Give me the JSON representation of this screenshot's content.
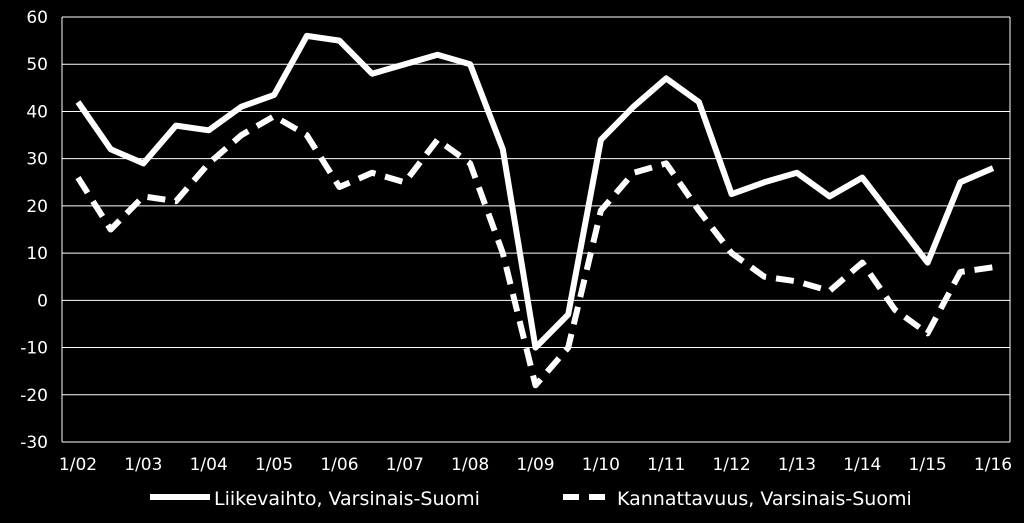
{
  "chart_data": {
    "type": "line",
    "ylim": [
      -30,
      60
    ],
    "yticks": [
      -30,
      -20,
      -10,
      0,
      10,
      20,
      30,
      40,
      50,
      60
    ],
    "xticks": [
      "1/02",
      "1/03",
      "1/04",
      "1/05",
      "1/06",
      "1/07",
      "1/08",
      "1/09",
      "1/10",
      "1/11",
      "1/12",
      "1/13",
      "1/14",
      "1/15",
      "1/16"
    ],
    "xlim": [
      0,
      14
    ],
    "grid": "horizontal",
    "legend": "bottom",
    "background": "#000000",
    "series": [
      {
        "name": "Liikevaihto, Varsinais-Suomi",
        "style": "solid",
        "color": "#ffffff",
        "x": [
          0,
          0.5,
          1,
          1.5,
          2,
          2.5,
          3,
          3.5,
          4,
          4.5,
          5,
          5.5,
          6,
          6.5,
          7,
          7.5,
          8,
          8.5,
          9,
          9.5,
          10,
          10.5,
          11,
          11.5,
          12,
          12.5,
          13,
          13.5,
          14
        ],
        "values": [
          42,
          32,
          29,
          37,
          36,
          41,
          43.5,
          56,
          55,
          48,
          50,
          52,
          50,
          32,
          -10,
          -3,
          34,
          41,
          47,
          42,
          22.5,
          25,
          27,
          22,
          26,
          17,
          8,
          25,
          28
        ]
      },
      {
        "name": "Kannattavuus, Varsinais-Suomi",
        "style": "dashed",
        "color": "#ffffff",
        "x": [
          0,
          0.5,
          1,
          1.5,
          2,
          2.5,
          3,
          3.5,
          4,
          4.5,
          5,
          5.5,
          6,
          6.5,
          7,
          7.5,
          8,
          8.5,
          9,
          9.5,
          10,
          10.5,
          11,
          11.5,
          12,
          12.5,
          13,
          13.5,
          14
        ],
        "values": [
          26,
          15,
          22,
          21,
          29,
          35,
          39,
          35,
          24,
          27,
          25,
          34,
          29,
          10,
          -18,
          -10,
          19,
          27,
          29,
          19,
          10,
          5,
          4,
          2,
          8,
          -2,
          -7,
          6,
          7
        ]
      }
    ]
  }
}
